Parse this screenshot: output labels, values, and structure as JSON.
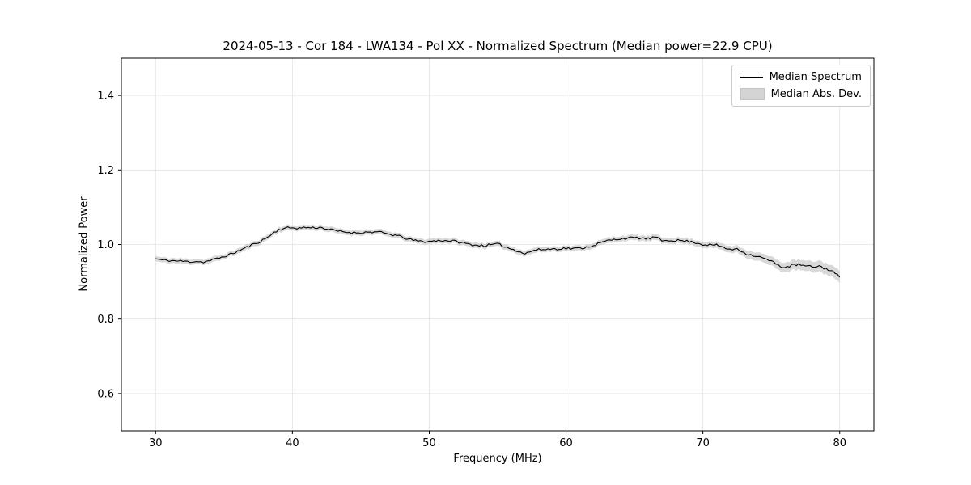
{
  "figure": {
    "title": "2024-05-13 - Cor 184 - LWA134 - Pol XX - Normalized Spectrum (Median power=22.9 CPU)",
    "background": "#ffffff"
  },
  "chart_data": {
    "type": "line",
    "title": "2024-05-13 - Cor 184 - LWA134 - Pol XX - Normalized Spectrum (Median power=22.9 CPU)",
    "xlabel": "Frequency (MHz)",
    "ylabel": "Normalized Power",
    "xlim": [
      27.5,
      82.5
    ],
    "ylim": [
      0.5,
      1.5
    ],
    "xticks": [
      30,
      40,
      50,
      60,
      70,
      80
    ],
    "yticks": [
      0.6,
      0.8,
      1.0,
      1.2,
      1.4
    ],
    "grid": true,
    "grid_color": "#e3e3e3",
    "spine_color": "#000000",
    "legend": {
      "position": "upper right",
      "entries": [
        {
          "label": "Median Spectrum",
          "type": "line",
          "color": "#000000"
        },
        {
          "label": "Median Abs. Dev.",
          "type": "patch",
          "color": "#d4d4d4"
        }
      ]
    },
    "series": [
      {
        "name": "Median Spectrum",
        "color": "#000000",
        "linewidth": 1.1,
        "x": [
          30.0,
          30.5,
          31.0,
          31.5,
          32.0,
          32.5,
          33.0,
          33.5,
          34.0,
          34.5,
          35.0,
          35.5,
          36.0,
          36.5,
          37.0,
          37.5,
          38.0,
          38.5,
          39.0,
          39.5,
          40.0,
          40.5,
          41.0,
          41.5,
          42.0,
          42.5,
          43.0,
          43.5,
          44.0,
          44.5,
          45.0,
          45.5,
          46.0,
          46.5,
          47.0,
          47.5,
          48.0,
          48.5,
          49.0,
          49.5,
          50.0,
          50.5,
          51.0,
          51.5,
          52.0,
          52.5,
          53.0,
          53.5,
          54.0,
          54.5,
          55.0,
          55.5,
          56.0,
          56.5,
          57.0,
          57.5,
          58.0,
          58.5,
          59.0,
          59.5,
          60.0,
          60.5,
          61.0,
          61.5,
          62.0,
          62.5,
          63.0,
          63.5,
          64.0,
          64.5,
          65.0,
          65.5,
          66.0,
          66.5,
          67.0,
          67.5,
          68.0,
          68.5,
          69.0,
          69.5,
          70.0,
          70.5,
          71.0,
          71.5,
          72.0,
          72.5,
          73.0,
          73.5,
          74.0,
          74.5,
          75.0,
          75.5,
          76.0,
          76.5,
          77.0,
          77.5,
          78.0,
          78.5,
          79.0,
          79.5,
          80.0
        ],
        "y": [
          0.962,
          0.958,
          0.957,
          0.956,
          0.955,
          0.954,
          0.955,
          0.953,
          0.957,
          0.962,
          0.968,
          0.974,
          0.982,
          0.99,
          0.998,
          1.006,
          1.015,
          1.028,
          1.04,
          1.044,
          1.045,
          1.044,
          1.046,
          1.045,
          1.046,
          1.042,
          1.038,
          1.035,
          1.033,
          1.032,
          1.032,
          1.033,
          1.034,
          1.032,
          1.028,
          1.025,
          1.02,
          1.014,
          1.01,
          1.008,
          1.008,
          1.01,
          1.011,
          1.01,
          1.008,
          1.004,
          1.0,
          0.998,
          0.997,
          0.999,
          1.001,
          0.995,
          0.988,
          0.983,
          0.975,
          0.983,
          0.986,
          0.987,
          0.988,
          0.989,
          0.99,
          0.989,
          0.99,
          0.993,
          0.998,
          1.004,
          1.01,
          1.013,
          1.016,
          1.017,
          1.018,
          1.017,
          1.015,
          1.02,
          1.01,
          1.012,
          1.011,
          1.01,
          1.008,
          1.005,
          1.0,
          0.999,
          0.998,
          0.993,
          0.985,
          0.99,
          0.978,
          0.972,
          0.968,
          0.962,
          0.955,
          0.945,
          0.938,
          0.944,
          0.946,
          0.942,
          0.94,
          0.942,
          0.935,
          0.928,
          0.912
        ]
      }
    ],
    "band": {
      "name": "Median Abs. Dev.",
      "color": "#c4c4c4",
      "opacity": 0.65,
      "x": [
        30,
        60,
        70,
        72,
        75,
        80
      ],
      "halfwidth": [
        0.007,
        0.007,
        0.008,
        0.009,
        0.012,
        0.016
      ]
    },
    "noise": {
      "seed": 11,
      "amplitude": 0.0032,
      "subsamples": 3
    }
  }
}
